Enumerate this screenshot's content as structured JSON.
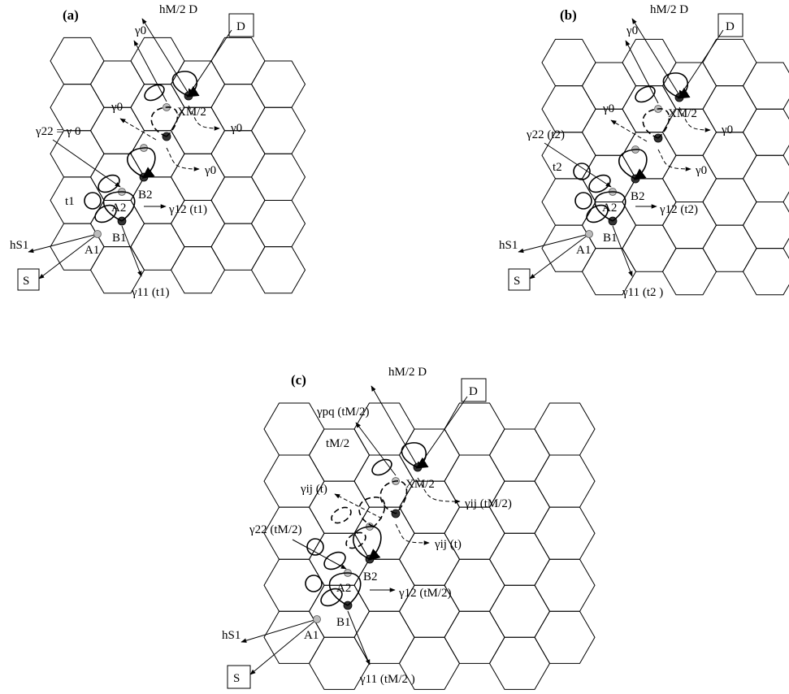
{
  "panels": [
    {
      "label": "(a)",
      "source": "S",
      "dest": "D",
      "h_src": "hS1",
      "h_dst": "hM/2 D",
      "nodes": [
        "A1",
        "B1",
        "A2",
        "B2",
        "XM/2"
      ],
      "top_gammas": [
        "γ0",
        "γ0",
        "γ0",
        "γ0"
      ],
      "gamma22": "γ22 = γ 0",
      "t_left": "t1",
      "gamma12": "γ12 (t1)",
      "gamma11": "γ11 (t1)"
    },
    {
      "label": "(b)",
      "source": "S",
      "dest": "D",
      "h_src": "hS1",
      "h_dst": "hM/2 D",
      "nodes": [
        "A1",
        "B1",
        "A2",
        "B2",
        "XM/2"
      ],
      "top_gammas": [
        "γ0",
        "γ0",
        "γ0",
        "γ0"
      ],
      "gamma22": "γ22 (t2)",
      "t_left": "t2",
      "gamma12": "γ12 (t2)",
      "gamma11": "γ11 (t2 )"
    },
    {
      "label": "(c)",
      "source": "S",
      "dest": "D",
      "h_src": "hS1",
      "h_dst": "hM/2 D",
      "nodes": [
        "A1",
        "B1",
        "A2",
        "B2",
        "XM/2"
      ],
      "gamma_pq": "γpq (tM/2)",
      "t_top": "tM/2",
      "gamma_ij_left": "γij (t)",
      "gamma_ij_right_top": "γij (tM/2)",
      "gamma_ij_right_mid": "γij (t)",
      "gamma22": "γ22 (tM/2)",
      "gamma12": "γ12 (tM/2)",
      "gamma11": "γ11 (tM/2 )"
    }
  ]
}
